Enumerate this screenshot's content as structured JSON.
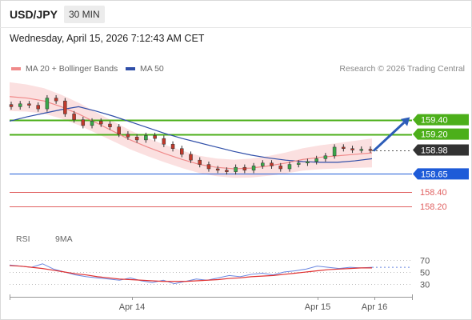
{
  "header": {
    "symbol": "USD/JPY",
    "timeframe": "30 MIN",
    "datetime": "Wednesday, April 15, 2026 7:12:43 AM CET"
  },
  "legend": {
    "ma20": "MA 20 + Bollinger Bands",
    "ma50": "MA 50",
    "credit": "Research © 2026 Trading Central"
  },
  "rsi_legend": {
    "rsi": "RSI",
    "ma9": "9MA"
  },
  "colors": {
    "ma20": "#f08a8a",
    "ma50": "#2f4ea8",
    "bollinger": "#f9d6d6",
    "green": "#4caf1a",
    "blue": "#1e5bd8",
    "red": "#e06060",
    "current": "#333333"
  },
  "chart_data": [
    {
      "type": "line",
      "title": "USD/JPY 30 MIN",
      "xlabel": "",
      "ylabel": "",
      "x_tick_labels": [
        "Apr 14",
        "Apr 15",
        "Apr 16"
      ],
      "levels": [
        {
          "value": 159.4,
          "label": "159.40",
          "kind": "resistance",
          "color": "#4caf1a"
        },
        {
          "value": 159.2,
          "label": "159.20",
          "kind": "resistance",
          "color": "#4caf1a"
        },
        {
          "value": 158.98,
          "label": "158.98",
          "kind": "current",
          "color": "#333333"
        },
        {
          "value": 158.65,
          "label": "158.65",
          "kind": "pivot",
          "color": "#1e5bd8"
        },
        {
          "value": 158.4,
          "label": "158.40",
          "kind": "support",
          "color": "#e06060"
        },
        {
          "value": 158.2,
          "label": "158.20",
          "kind": "support",
          "color": "#e06060"
        }
      ],
      "series": [
        {
          "name": "MA 20 + Bollinger Bands",
          "values": [
            159.72,
            159.7,
            159.66,
            159.58,
            159.48,
            159.36,
            159.24,
            159.12,
            159.02,
            158.93,
            158.85,
            158.78,
            158.74,
            158.72,
            158.73,
            158.76,
            158.8,
            158.85,
            158.88,
            158.9,
            158.92,
            158.94
          ]
        },
        {
          "name": "MA 50",
          "values": [
            159.38,
            159.44,
            159.49,
            159.54,
            159.58,
            159.52,
            159.45,
            159.37,
            159.29,
            159.21,
            159.14,
            159.08,
            159.02,
            158.96,
            158.91,
            158.87,
            158.84,
            158.82,
            158.81,
            158.81,
            158.83,
            158.86
          ]
        }
      ],
      "price_close": [
        159.58,
        159.62,
        159.6,
        159.55,
        159.7,
        159.66,
        159.48,
        159.4,
        159.32,
        159.38,
        159.34,
        159.3,
        159.2,
        159.16,
        159.12,
        159.18,
        159.14,
        159.06,
        159.0,
        158.92,
        158.84,
        158.78,
        158.72,
        158.7,
        158.68,
        158.74,
        158.7,
        158.76,
        158.8,
        158.76,
        158.72,
        158.78,
        158.8,
        158.82,
        158.86,
        158.9,
        159.02,
        159.0,
        158.98,
        158.99,
        158.98
      ],
      "ylim": [
        157.9,
        159.95
      ]
    },
    {
      "type": "line",
      "title": "RSI",
      "y_tick_labels": [
        "70",
        "50",
        "30"
      ],
      "ylim": [
        20,
        80
      ],
      "series": [
        {
          "name": "RSI",
          "values": [
            62,
            60,
            58,
            64,
            55,
            50,
            45,
            42,
            40,
            38,
            36,
            40,
            35,
            32,
            36,
            30,
            34,
            38,
            36,
            40,
            44,
            42,
            46,
            48,
            45,
            50,
            52,
            55,
            60,
            58,
            56,
            58,
            57,
            58
          ]
        },
        {
          "name": "9MA",
          "values": [
            61,
            60,
            58,
            56,
            53,
            50,
            47,
            45,
            42,
            40,
            38,
            37,
            36,
            35,
            34,
            34,
            34,
            35,
            36,
            37,
            39,
            40,
            42,
            43,
            44,
            46,
            48,
            50,
            52,
            54,
            55,
            56,
            57,
            57
          ]
        }
      ]
    }
  ]
}
